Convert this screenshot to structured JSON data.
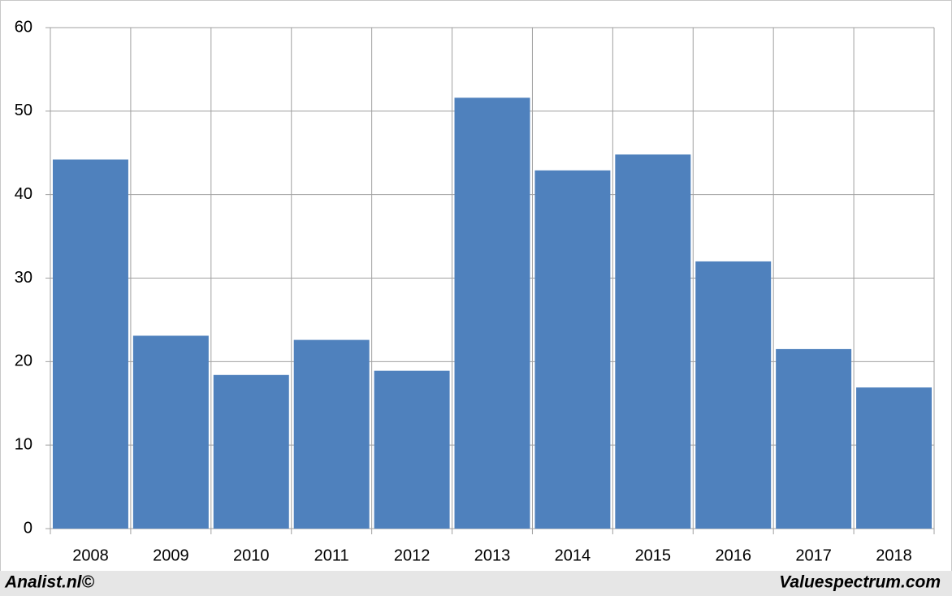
{
  "chart_data": {
    "type": "bar",
    "categories": [
      "2008",
      "2009",
      "2010",
      "2011",
      "2012",
      "2013",
      "2014",
      "2015",
      "2016",
      "2017",
      "2018"
    ],
    "values": [
      44.2,
      23.1,
      18.4,
      22.6,
      18.9,
      51.6,
      42.9,
      44.8,
      32.0,
      21.5,
      16.9
    ],
    "color": "#4f81bd",
    "ylim": [
      0,
      60
    ],
    "yticks": [
      0,
      10,
      20,
      30,
      40,
      50,
      60
    ],
    "grid": true
  },
  "footer": {
    "left": "Analist.nl©",
    "right": "Valuespectrum.com"
  }
}
